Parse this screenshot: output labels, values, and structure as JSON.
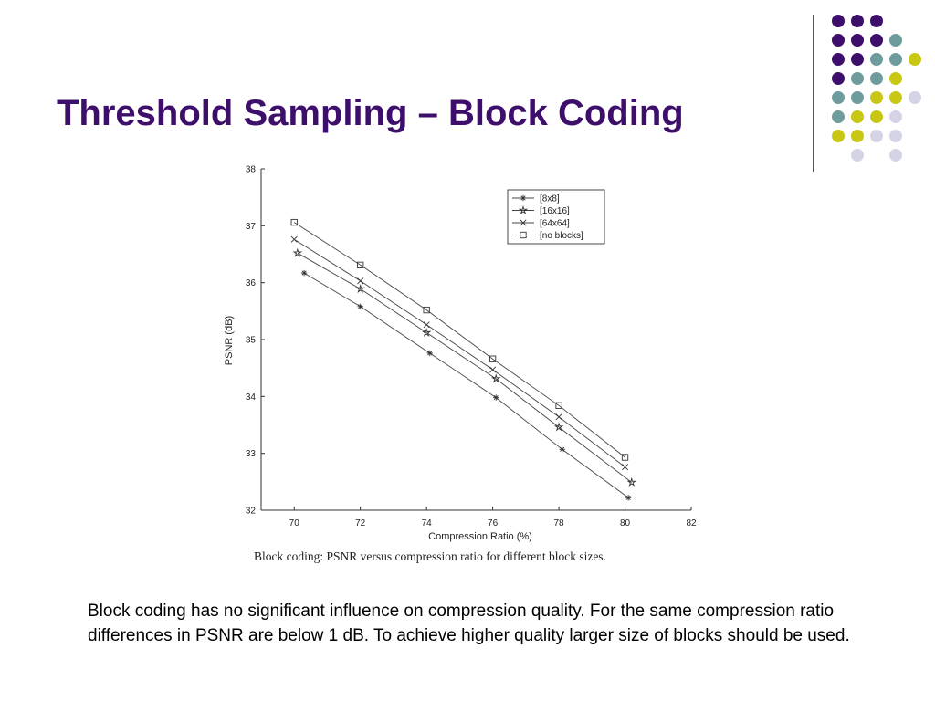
{
  "slide": {
    "title": "Threshold Sampling – Block Coding",
    "caption": "Block coding: PSNR versus compression ratio for different block sizes.",
    "body_text": "Block coding has no significant influence on compression quality. For the same compression ratio differences in PSNR are below 1 dB. To achieve higher quality larger size of blocks should be used."
  },
  "colors": {
    "title": "#3d0f6b",
    "purple": "#3d0f6b",
    "teal": "#6e9c9c",
    "yellow": "#c8c814",
    "lavender": "#d4d4e6"
  },
  "decoration": {
    "dot_grid": [
      [
        "purple",
        "purple",
        "purple",
        null,
        null
      ],
      [
        "purple",
        "purple",
        "purple",
        "teal",
        null
      ],
      [
        "purple",
        "purple",
        "teal",
        "teal",
        "yellow"
      ],
      [
        "purple",
        "teal",
        "teal",
        "yellow",
        null
      ],
      [
        "teal",
        "teal",
        "yellow",
        "yellow",
        "lavender"
      ],
      [
        "teal",
        "yellow",
        "yellow",
        "lavender",
        null
      ],
      [
        "yellow",
        "yellow",
        "lavender",
        "lavender",
        null
      ],
      [
        null,
        "lavender",
        null,
        "lavender",
        null
      ]
    ]
  },
  "chart_data": {
    "type": "line",
    "xlabel": "Compression Ratio (%)",
    "ylabel": "PSNR (dB)",
    "xlim": [
      69,
      82
    ],
    "ylim": [
      32,
      38
    ],
    "xticks": [
      70,
      72,
      74,
      76,
      78,
      80,
      82
    ],
    "yticks": [
      32,
      33,
      34,
      35,
      36,
      37,
      38
    ],
    "legend_position": "top-right",
    "series": [
      {
        "name": "[8x8]",
        "marker": "asterisk",
        "x": [
          70.3,
          72,
          74.1,
          76.1,
          78.1,
          80.1
        ],
        "y": [
          36.17,
          35.58,
          34.76,
          33.98,
          33.07,
          32.22
        ]
      },
      {
        "name": "[16x16]",
        "marker": "star",
        "x": [
          70.1,
          72,
          74,
          76.1,
          78,
          80.2
        ],
        "y": [
          36.52,
          35.89,
          35.12,
          34.31,
          33.46,
          32.49
        ]
      },
      {
        "name": "[64x64]",
        "marker": "x",
        "x": [
          70,
          72,
          74,
          76,
          78,
          80
        ],
        "y": [
          36.76,
          36.03,
          35.26,
          34.47,
          33.64,
          32.76
        ]
      },
      {
        "name": "[no blocks]",
        "marker": "square",
        "x": [
          70,
          72,
          74,
          76,
          78,
          80
        ],
        "y": [
          37.06,
          36.31,
          35.52,
          34.66,
          33.84,
          32.93
        ]
      }
    ]
  }
}
